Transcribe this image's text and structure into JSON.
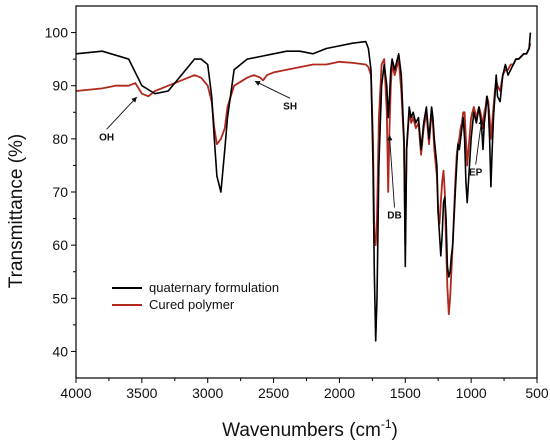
{
  "chart_data": {
    "type": "line",
    "xlabel": "Wavenumbers (cm",
    "xlabel_sup": "-1",
    "xlabel_end": ")",
    "ylabel": "Transmittance (%)",
    "xlim": [
      4000,
      500
    ],
    "ylim": [
      35,
      105
    ],
    "x_reversed": true,
    "x_ticks": [
      4000,
      3500,
      3000,
      2500,
      2000,
      1500,
      1000,
      500
    ],
    "y_ticks": [
      40,
      50,
      60,
      70,
      80,
      90,
      100
    ],
    "legend_position": "lower-left",
    "grid": false,
    "series": [
      {
        "name": "quaternary formulation",
        "color": "#000000",
        "x": [
          4000,
          3800,
          3600,
          3500,
          3400,
          3300,
          3200,
          3100,
          3050,
          3000,
          2970,
          2950,
          2930,
          2900,
          2870,
          2850,
          2800,
          2700,
          2600,
          2500,
          2400,
          2300,
          2200,
          2100,
          2000,
          1900,
          1800,
          1780,
          1760,
          1745,
          1735,
          1725,
          1715,
          1700,
          1680,
          1660,
          1640,
          1630,
          1620,
          1610,
          1600,
          1580,
          1550,
          1530,
          1510,
          1500,
          1490,
          1470,
          1455,
          1440,
          1420,
          1400,
          1380,
          1360,
          1340,
          1320,
          1300,
          1290,
          1280,
          1260,
          1250,
          1240,
          1230,
          1220,
          1210,
          1200,
          1190,
          1180,
          1170,
          1160,
          1150,
          1140,
          1130,
          1120,
          1110,
          1100,
          1090,
          1080,
          1070,
          1060,
          1050,
          1040,
          1030,
          1020,
          1000,
          980,
          960,
          940,
          920,
          910,
          900,
          890,
          880,
          870,
          860,
          850,
          840,
          830,
          820,
          810,
          800,
          780,
          760,
          740,
          720,
          700,
          680,
          660,
          640,
          620,
          600,
          580,
          560,
          550
        ],
        "y": [
          96,
          96.5,
          95,
          90,
          88.5,
          89,
          92,
          95,
          95,
          94,
          88,
          80,
          73,
          70,
          78,
          84,
          93,
          95,
          95.5,
          96,
          96.5,
          96.5,
          96,
          97,
          97.5,
          98,
          98.3,
          97,
          93,
          75,
          55,
          42,
          50,
          75,
          90,
          94,
          90,
          84,
          88,
          93,
          95,
          93,
          96,
          92,
          80,
          56,
          78,
          86,
          84,
          85,
          83,
          84,
          78,
          83,
          86,
          80,
          86,
          84,
          80,
          75,
          66,
          62,
          58,
          62,
          68,
          69,
          65,
          56,
          54,
          55,
          58,
          60,
          65,
          70,
          75,
          79,
          78,
          80,
          82,
          84,
          80,
          72,
          68,
          72,
          80,
          85,
          83,
          86,
          82,
          78,
          83,
          85,
          88,
          86,
          80,
          71,
          78,
          84,
          88,
          92,
          88,
          87,
          92,
          94,
          92,
          93,
          94,
          95,
          95,
          95.5,
          96,
          96,
          97,
          100
        ]
      },
      {
        "name": "Cured polymer",
        "color": "#b0281e",
        "x": [
          4000,
          3800,
          3700,
          3600,
          3550,
          3500,
          3450,
          3400,
          3300,
          3200,
          3100,
          3050,
          3000,
          2970,
          2950,
          2930,
          2900,
          2870,
          2850,
          2800,
          2700,
          2650,
          2600,
          2580,
          2550,
          2500,
          2400,
          2300,
          2200,
          2100,
          2000,
          1900,
          1800,
          1780,
          1760,
          1745,
          1735,
          1725,
          1715,
          1700,
          1680,
          1660,
          1640,
          1630,
          1620,
          1610,
          1600,
          1580,
          1550,
          1530,
          1510,
          1500,
          1490,
          1470,
          1455,
          1440,
          1420,
          1400,
          1380,
          1360,
          1340,
          1320,
          1300,
          1290,
          1280,
          1260,
          1250,
          1240,
          1230,
          1220,
          1210,
          1200,
          1190,
          1180,
          1170,
          1160,
          1150,
          1140,
          1130,
          1120,
          1110,
          1100,
          1090,
          1080,
          1070,
          1060,
          1050,
          1040,
          1030,
          1020,
          1000,
          980,
          960,
          940,
          920,
          910,
          900,
          890,
          880,
          870,
          860,
          850,
          840,
          830,
          820,
          810,
          800,
          780,
          760,
          740,
          720,
          700,
          680,
          660,
          640,
          620,
          600,
          580,
          560,
          550
        ],
        "y": [
          89,
          89.5,
          90,
          90,
          90.5,
          88.5,
          88,
          89,
          90,
          91,
          92,
          91.5,
          90,
          87,
          82,
          79,
          80,
          82,
          86,
          90,
          91.5,
          92,
          91.5,
          91,
          92,
          92.5,
          93,
          93.5,
          94,
          94,
          94.5,
          94.3,
          94,
          93.5,
          92,
          80,
          62,
          60,
          65,
          84,
          94,
          95,
          85,
          70,
          82,
          90,
          94,
          92,
          95,
          89,
          79,
          60,
          78,
          85,
          83,
          84,
          82,
          83,
          77,
          82,
          85,
          79,
          85,
          83,
          78,
          73,
          66,
          64,
          68,
          72,
          74,
          70,
          60,
          52,
          47,
          50,
          55,
          60,
          66,
          72,
          77,
          79,
          80,
          82,
          83,
          85,
          85,
          80,
          75,
          78,
          84,
          86,
          84,
          86,
          84,
          82,
          85,
          86,
          88,
          87,
          84,
          80,
          83,
          86,
          89,
          91,
          90,
          89,
          92,
          93,
          93,
          94,
          94,
          95,
          95,
          95.5,
          96,
          96,
          97,
          98
        ]
      }
    ],
    "annotations": [
      {
        "text": "OH",
        "x": 3540,
        "y": 88.2
      },
      {
        "text": "SH",
        "x": 2640,
        "y": 91.2
      },
      {
        "text": "DB",
        "x": 1620,
        "y": 81
      },
      {
        "text": "EP",
        "x": 920,
        "y": 84
      }
    ]
  }
}
